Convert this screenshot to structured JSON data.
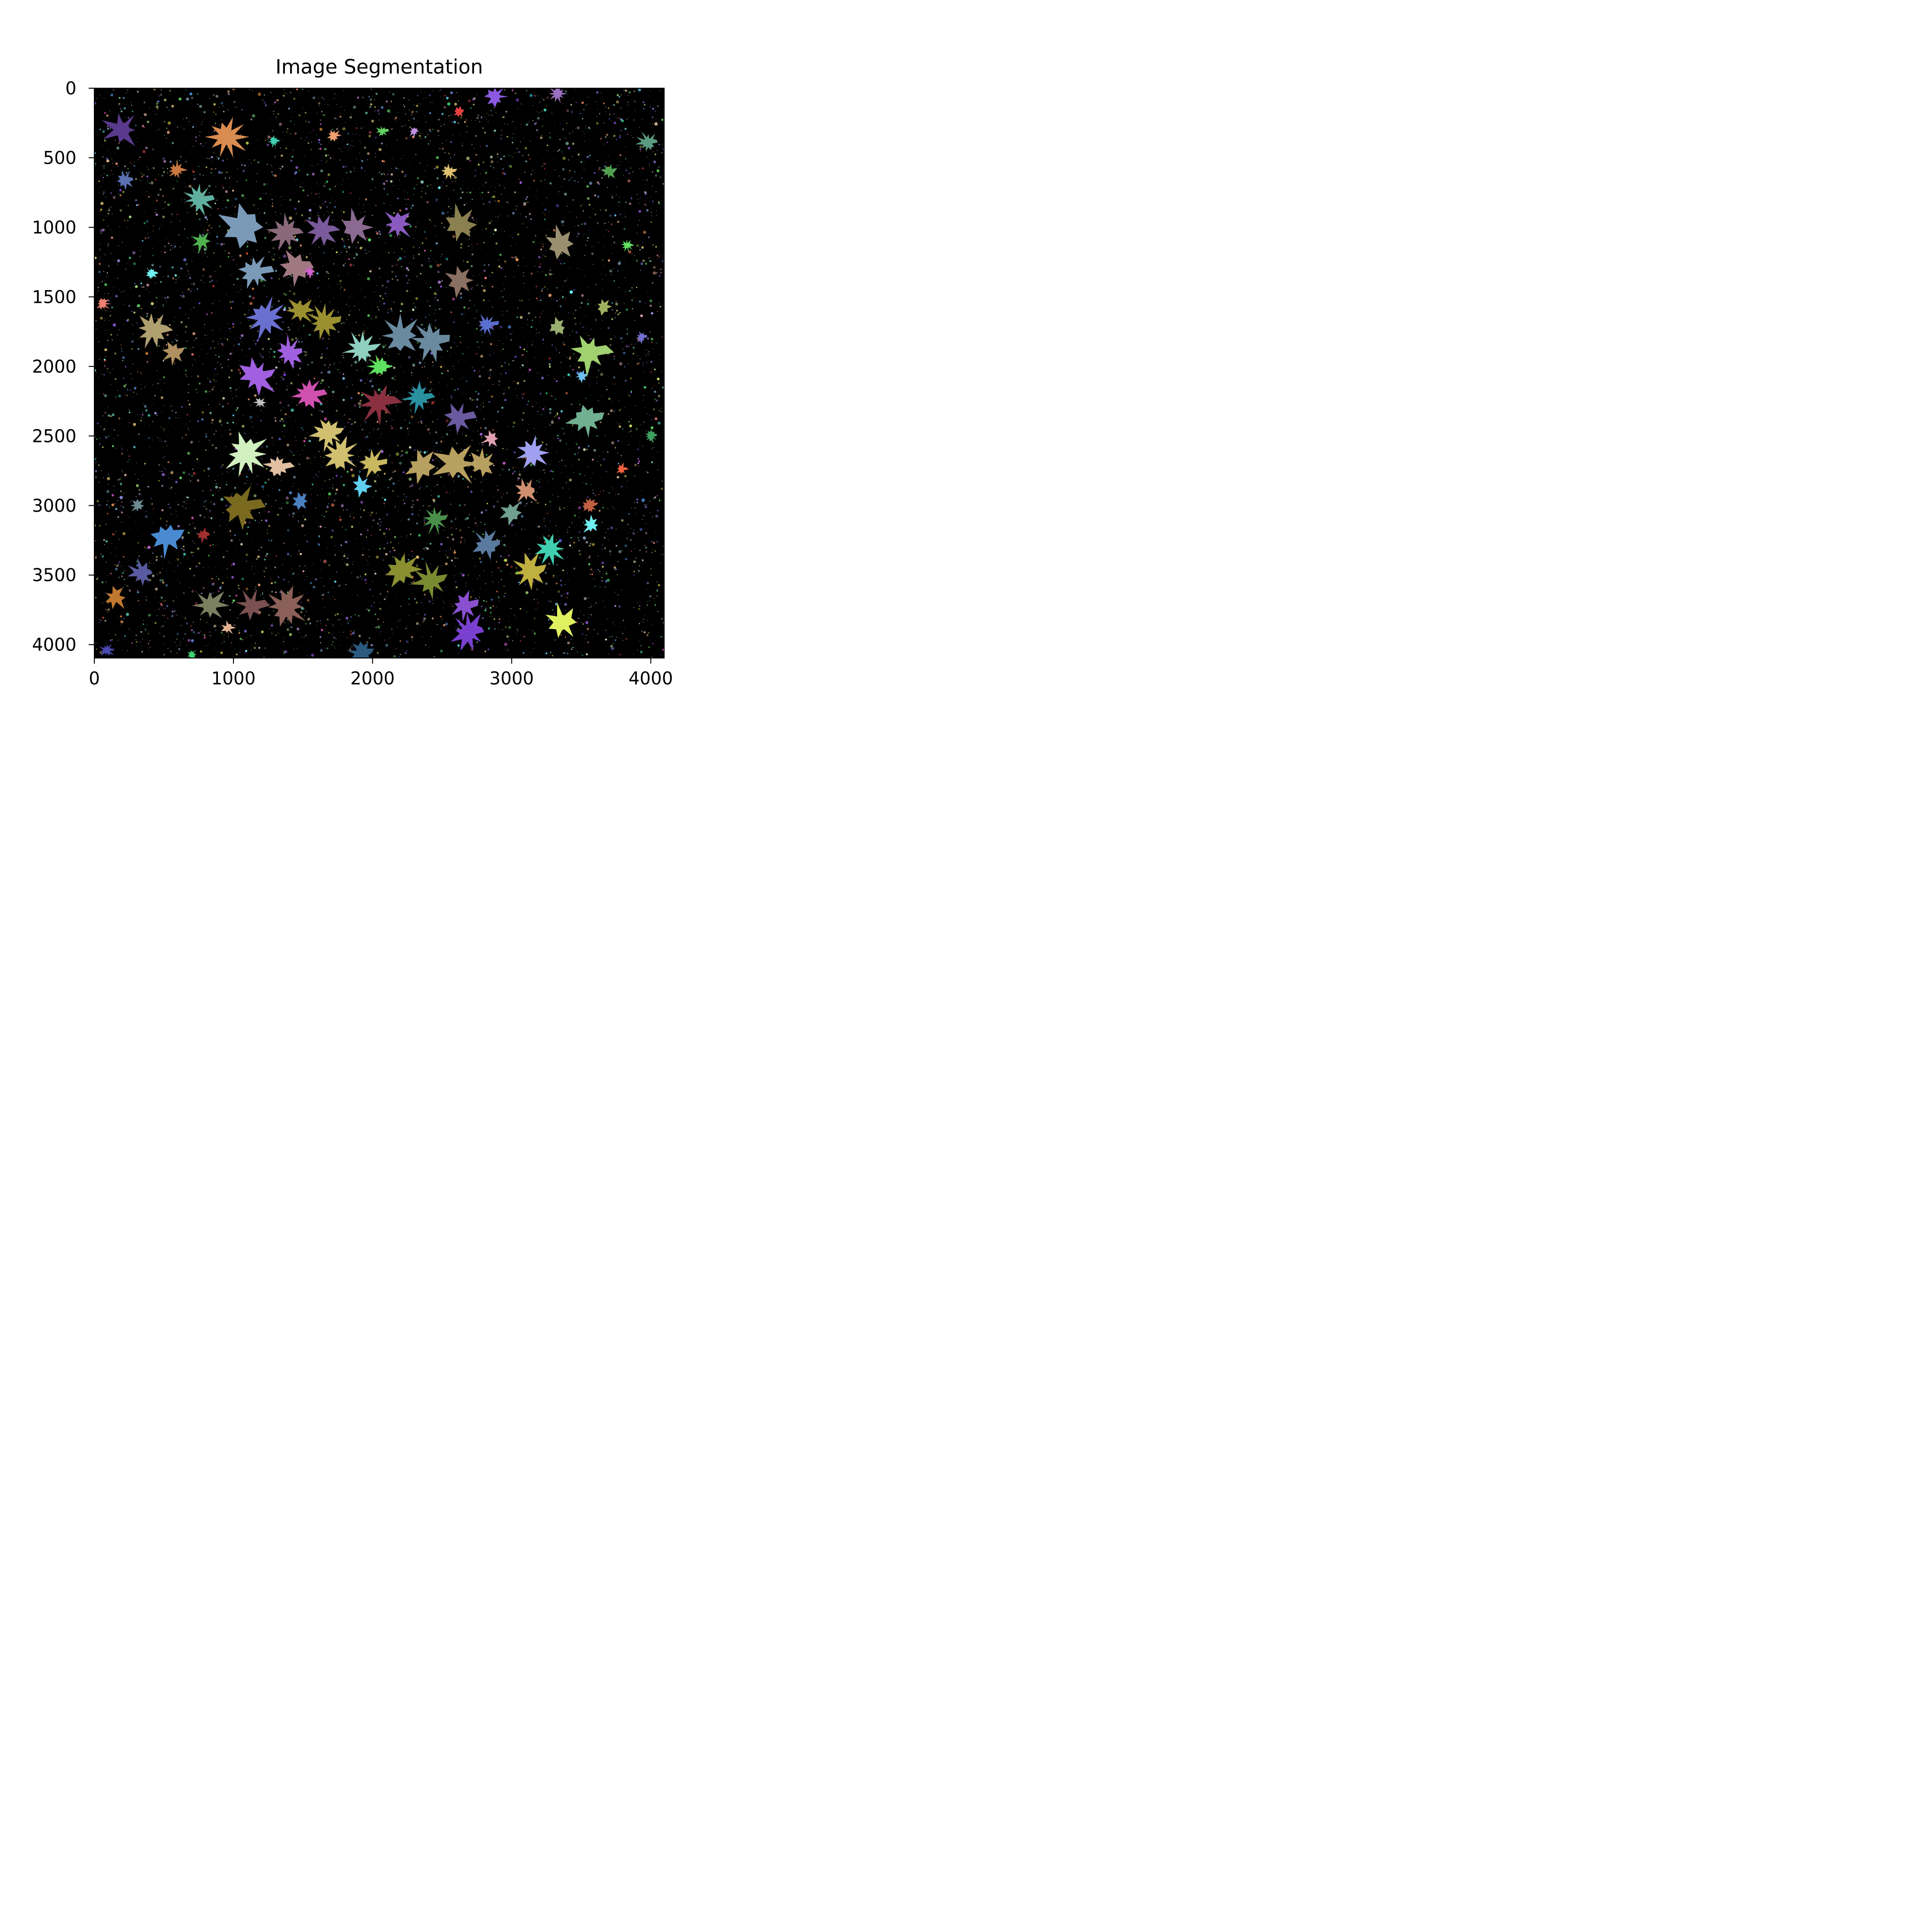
{
  "chart_data": {
    "type": "heatmap",
    "title": "Image Segmentation",
    "xlabel": "",
    "ylabel": "",
    "xlim": [
      0,
      4096
    ],
    "ylim": [
      4096,
      0
    ],
    "y_axis_inverted": true,
    "grid": false,
    "legend": "none",
    "background": "#000000",
    "x_ticks": [
      {
        "value": 0,
        "label": "0"
      },
      {
        "value": 1000,
        "label": "1000"
      },
      {
        "value": 2000,
        "label": "2000"
      },
      {
        "value": 3000,
        "label": "3000"
      },
      {
        "value": 4000,
        "label": "4000"
      }
    ],
    "y_ticks": [
      {
        "value": 0,
        "label": "0"
      },
      {
        "value": 500,
        "label": "500"
      },
      {
        "value": 1000,
        "label": "1000"
      },
      {
        "value": 1500,
        "label": "1500"
      },
      {
        "value": 2000,
        "label": "2000"
      },
      {
        "value": 2500,
        "label": "2500"
      },
      {
        "value": 3000,
        "label": "3000"
      },
      {
        "value": 3500,
        "label": "3500"
      },
      {
        "value": 4000,
        "label": "4000"
      }
    ],
    "segments": [
      {
        "x": 200,
        "y": 300,
        "r": 120,
        "color": "#5a3a8c"
      },
      {
        "x": 950,
        "y": 350,
        "r": 130,
        "color": "#d98c50"
      },
      {
        "x": 1720,
        "y": 340,
        "r": 50,
        "color": "#f0a070"
      },
      {
        "x": 2880,
        "y": 60,
        "r": 80,
        "color": "#8c5ae0"
      },
      {
        "x": 3330,
        "y": 40,
        "r": 60,
        "color": "#9a70c0"
      },
      {
        "x": 2300,
        "y": 310,
        "r": 35,
        "color": "#c090e0"
      },
      {
        "x": 590,
        "y": 590,
        "r": 60,
        "color": "#c87840"
      },
      {
        "x": 220,
        "y": 660,
        "r": 60,
        "color": "#5a70b0"
      },
      {
        "x": 750,
        "y": 800,
        "r": 100,
        "color": "#60b0a0"
      },
      {
        "x": 1080,
        "y": 1000,
        "r": 160,
        "color": "#7a9ab8"
      },
      {
        "x": 1150,
        "y": 1320,
        "r": 120,
        "color": "#7a9ab8"
      },
      {
        "x": 1380,
        "y": 1040,
        "r": 110,
        "color": "#8a6a7a"
      },
      {
        "x": 1450,
        "y": 1290,
        "r": 120,
        "color": "#a07880"
      },
      {
        "x": 1640,
        "y": 1020,
        "r": 110,
        "color": "#7a5a9a"
      },
      {
        "x": 1880,
        "y": 1000,
        "r": 110,
        "color": "#8a6a90"
      },
      {
        "x": 2180,
        "y": 980,
        "r": 100,
        "color": "#8a5ac0"
      },
      {
        "x": 2630,
        "y": 980,
        "r": 130,
        "color": "#8a8050"
      },
      {
        "x": 2630,
        "y": 1380,
        "r": 110,
        "color": "#8a7060"
      },
      {
        "x": 3350,
        "y": 1120,
        "r": 110,
        "color": "#9a9070"
      },
      {
        "x": 3980,
        "y": 390,
        "r": 70,
        "color": "#5a9a80"
      },
      {
        "x": 2550,
        "y": 600,
        "r": 50,
        "color": "#e0c070"
      },
      {
        "x": 770,
        "y": 1100,
        "r": 70,
        "color": "#50b050"
      },
      {
        "x": 420,
        "y": 1740,
        "r": 110,
        "color": "#b0a070"
      },
      {
        "x": 570,
        "y": 1900,
        "r": 80,
        "color": "#b09060"
      },
      {
        "x": 1230,
        "y": 1650,
        "r": 130,
        "color": "#6a70d0"
      },
      {
        "x": 1480,
        "y": 1600,
        "r": 100,
        "color": "#9a9030"
      },
      {
        "x": 1650,
        "y": 1680,
        "r": 110,
        "color": "#9a9030"
      },
      {
        "x": 1920,
        "y": 1880,
        "r": 110,
        "color": "#90d0c0"
      },
      {
        "x": 2200,
        "y": 1780,
        "r": 130,
        "color": "#6a8aa0"
      },
      {
        "x": 2420,
        "y": 1820,
        "r": 120,
        "color": "#6a8aa0"
      },
      {
        "x": 2820,
        "y": 1700,
        "r": 70,
        "color": "#5a70d0"
      },
      {
        "x": 3330,
        "y": 1720,
        "r": 70,
        "color": "#9ab070"
      },
      {
        "x": 3560,
        "y": 1900,
        "r": 140,
        "color": "#a0d070"
      },
      {
        "x": 3660,
        "y": 1570,
        "r": 60,
        "color": "#a0b060"
      },
      {
        "x": 1400,
        "y": 1900,
        "r": 100,
        "color": "#a060e0"
      },
      {
        "x": 1170,
        "y": 2070,
        "r": 130,
        "color": "#a060e0"
      },
      {
        "x": 1540,
        "y": 2200,
        "r": 110,
        "color": "#d050b0"
      },
      {
        "x": 2050,
        "y": 2000,
        "r": 80,
        "color": "#60e060"
      },
      {
        "x": 2040,
        "y": 2260,
        "r": 130,
        "color": "#8a3040"
      },
      {
        "x": 2330,
        "y": 2220,
        "r": 100,
        "color": "#2a90a0"
      },
      {
        "x": 2620,
        "y": 2370,
        "r": 100,
        "color": "#6a5aa0"
      },
      {
        "x": 3540,
        "y": 2380,
        "r": 120,
        "color": "#70b090"
      },
      {
        "x": 3150,
        "y": 2620,
        "r": 120,
        "color": "#a0a0f0"
      },
      {
        "x": 1090,
        "y": 2630,
        "r": 140,
        "color": "#d0f0c0"
      },
      {
        "x": 1320,
        "y": 2720,
        "r": 90,
        "color": "#e0c0a0"
      },
      {
        "x": 1680,
        "y": 2480,
        "r": 110,
        "color": "#d0c070"
      },
      {
        "x": 1770,
        "y": 2640,
        "r": 120,
        "color": "#d0c070"
      },
      {
        "x": 2000,
        "y": 2700,
        "r": 100,
        "color": "#c8b860"
      },
      {
        "x": 2350,
        "y": 2720,
        "r": 110,
        "color": "#b8a060"
      },
      {
        "x": 2600,
        "y": 2700,
        "r": 140,
        "color": "#b8a060"
      },
      {
        "x": 2790,
        "y": 2700,
        "r": 100,
        "color": "#b8a060"
      },
      {
        "x": 3100,
        "y": 2900,
        "r": 80,
        "color": "#d09070"
      },
      {
        "x": 1920,
        "y": 2860,
        "r": 70,
        "color": "#60d0f0"
      },
      {
        "x": 1050,
        "y": 3010,
        "r": 140,
        "color": "#7a6a20"
      },
      {
        "x": 1480,
        "y": 2970,
        "r": 70,
        "color": "#4a80c0"
      },
      {
        "x": 520,
        "y": 3230,
        "r": 120,
        "color": "#4a8ad0"
      },
      {
        "x": 780,
        "y": 3210,
        "r": 50,
        "color": "#a03030"
      },
      {
        "x": 2450,
        "y": 3100,
        "r": 90,
        "color": "#4a904a"
      },
      {
        "x": 2820,
        "y": 3280,
        "r": 100,
        "color": "#5a7aa0"
      },
      {
        "x": 3570,
        "y": 3140,
        "r": 60,
        "color": "#70f0f0"
      },
      {
        "x": 3280,
        "y": 3310,
        "r": 100,
        "color": "#40d0b0"
      },
      {
        "x": 3130,
        "y": 3470,
        "r": 120,
        "color": "#c0b040"
      },
      {
        "x": 3000,
        "y": 3050,
        "r": 80,
        "color": "#70a090"
      },
      {
        "x": 2210,
        "y": 3460,
        "r": 120,
        "color": "#8a9030"
      },
      {
        "x": 2420,
        "y": 3540,
        "r": 110,
        "color": "#7a8a30"
      },
      {
        "x": 340,
        "y": 3490,
        "r": 90,
        "color": "#5a5aa0"
      },
      {
        "x": 150,
        "y": 3660,
        "r": 80,
        "color": "#c07830"
      },
      {
        "x": 830,
        "y": 3720,
        "r": 110,
        "color": "#7a8060"
      },
      {
        "x": 1130,
        "y": 3720,
        "r": 100,
        "color": "#7a5050"
      },
      {
        "x": 1380,
        "y": 3730,
        "r": 140,
        "color": "#8a6058"
      },
      {
        "x": 2660,
        "y": 3720,
        "r": 90,
        "color": "#8a50d0"
      },
      {
        "x": 2690,
        "y": 3910,
        "r": 120,
        "color": "#7a40d0"
      },
      {
        "x": 3360,
        "y": 3840,
        "r": 120,
        "color": "#e0f060"
      },
      {
        "x": 1920,
        "y": 4060,
        "r": 90,
        "color": "#2a5a80"
      },
      {
        "x": 960,
        "y": 3880,
        "r": 45,
        "color": "#e0b090"
      },
      {
        "x": 700,
        "y": 4070,
        "r": 40,
        "color": "#40d070"
      },
      {
        "x": 90,
        "y": 4040,
        "r": 50,
        "color": "#4a4ab0"
      },
      {
        "x": 60,
        "y": 1550,
        "r": 50,
        "color": "#f08070"
      },
      {
        "x": 410,
        "y": 1330,
        "r": 40,
        "color": "#70f0f0"
      },
      {
        "x": 1550,
        "y": 1320,
        "r": 40,
        "color": "#d060d0"
      },
      {
        "x": 1190,
        "y": 2260,
        "r": 40,
        "color": "#c0c0c0"
      },
      {
        "x": 2850,
        "y": 2520,
        "r": 60,
        "color": "#e0a0b0"
      },
      {
        "x": 3790,
        "y": 2740,
        "r": 40,
        "color": "#f06040"
      },
      {
        "x": 3560,
        "y": 3000,
        "r": 60,
        "color": "#c06040"
      },
      {
        "x": 3500,
        "y": 2070,
        "r": 40,
        "color": "#70c0f0"
      },
      {
        "x": 3700,
        "y": 600,
        "r": 50,
        "color": "#50a050"
      },
      {
        "x": 3830,
        "y": 1130,
        "r": 40,
        "color": "#60e060"
      },
      {
        "x": 3930,
        "y": 1790,
        "r": 40,
        "color": "#7070d0"
      },
      {
        "x": 2620,
        "y": 170,
        "r": 40,
        "color": "#e04040"
      },
      {
        "x": 1290,
        "y": 380,
        "r": 40,
        "color": "#40d0b0"
      },
      {
        "x": 2070,
        "y": 310,
        "r": 40,
        "color": "#60d060"
      },
      {
        "x": 310,
        "y": 3000,
        "r": 50,
        "color": "#6a8a90"
      },
      {
        "x": 4000,
        "y": 2500,
        "r": 50,
        "color": "#40a060"
      }
    ]
  }
}
